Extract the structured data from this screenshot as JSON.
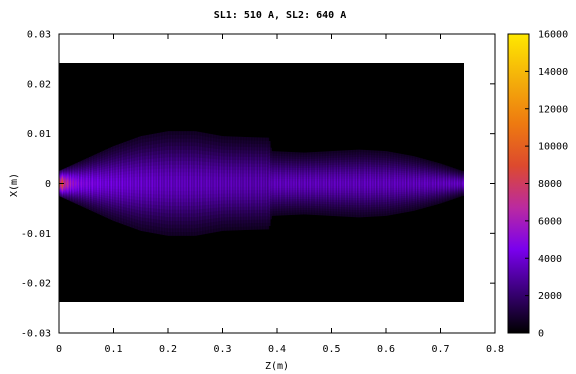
{
  "chart_data": {
    "type": "heatmap",
    "title": "SL1: 510 A, SL2: 640 A",
    "xlabel": "Z(m)",
    "ylabel": "X(m)",
    "xlim": [
      0,
      0.8
    ],
    "ylim": [
      -0.03,
      0.03
    ],
    "x_ticks": [
      "0",
      "0.1",
      "0.2",
      "0.3",
      "0.4",
      "0.5",
      "0.6",
      "0.7",
      "0.8"
    ],
    "y_ticks": [
      "-0.03",
      "-0.02",
      "-0.01",
      "0",
      "0.01",
      "0.02",
      "0.03"
    ],
    "data_extent": {
      "z": [
        0,
        0.74
      ],
      "x": [
        -0.024,
        0.024
      ]
    },
    "colorbar": {
      "range": [
        0,
        16000
      ],
      "ticks": [
        "0",
        "2000",
        "4000",
        "6000",
        "8000",
        "10000",
        "12000",
        "14000",
        "16000"
      ],
      "colormap": [
        "#000000",
        "#3a0078",
        "#7a00ee",
        "#bb2aa0",
        "#dd4a2e",
        "#ee7a10",
        "#f4b00a",
        "#ffe800"
      ]
    },
    "beam_envelope": {
      "z": [
        0,
        0.02,
        0.05,
        0.1,
        0.15,
        0.2,
        0.25,
        0.3,
        0.35,
        0.385,
        0.39,
        0.45,
        0.5,
        0.55,
        0.6,
        0.65,
        0.7,
        0.74
      ],
      "half_width": [
        0.0025,
        0.0035,
        0.005,
        0.0075,
        0.0095,
        0.0105,
        0.0105,
        0.0095,
        0.0093,
        0.0092,
        0.0065,
        0.0062,
        0.0065,
        0.0068,
        0.0065,
        0.0055,
        0.004,
        0.0025
      ]
    },
    "core_intensity": {
      "z": [
        0,
        0.005,
        0.01,
        0.02,
        0.04,
        0.08,
        0.2,
        0.385,
        0.39,
        0.6,
        0.7,
        0.74
      ],
      "value": [
        9000,
        10000,
        8500,
        6500,
        5200,
        4600,
        4000,
        3600,
        3900,
        3900,
        3900,
        4000
      ]
    }
  }
}
